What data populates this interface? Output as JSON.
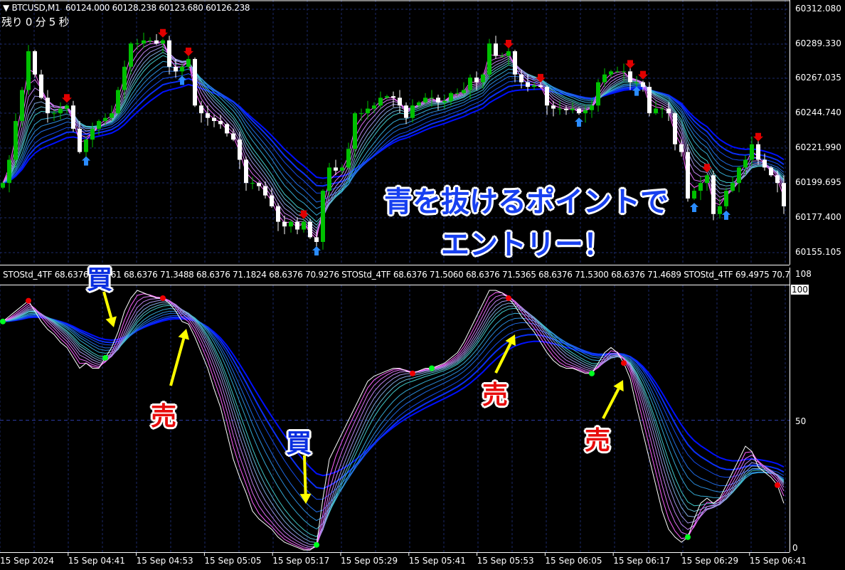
{
  "header": {
    "symbol": "BTCUSD,M1",
    "ohlc": "60124.000 60128.238 60123.680 60126.238",
    "timer": "残り 0 分 5 秒"
  },
  "indicator_header": {
    "text1": "STOStd_4TF 68.6376 ",
    "text2": "61 68.6376 71.3488 68.6376 71.1824 68.6376 70.9276  STOStd_4TF 68.6376 71.5060 68.6376 71.5365 68.6376 71.5300 68.6376 71.4689  STOStd_4TF 69.4975 70.7"
  },
  "price_axis": [
    "60312.080",
    "60289.330",
    "60267.035",
    "60244.740",
    "60221.990",
    "60199.695",
    "60177.400",
    "60155.105"
  ],
  "stoch_axis": {
    "top": "108",
    "l100": "100",
    "l50": "50",
    "l0": "0"
  },
  "time_axis": [
    "15 Sep 2024",
    "15 Sep 04:41",
    "15 Sep 04:53",
    "15 Sep 05:05",
    "15 Sep 05:17",
    "15 Sep 05:29",
    "15 Sep 05:41",
    "15 Sep 05:53",
    "15 Sep 06:05",
    "15 Sep 06:17",
    "15 Sep 06:29",
    "15 Sep 06:41"
  ],
  "annotations": {
    "buy1": "買",
    "sell1": "売",
    "buy2": "買",
    "sell2": "売",
    "sell3": "売",
    "headline_line1": "青を抜けるポイントで",
    "headline_line2": "エントリー！"
  },
  "colors": {
    "bull": "#00c000",
    "bear": "#ffffff",
    "grid": "#1c2a6a",
    "sell_signal": "#e00000",
    "buy_signal": "#2a8cff",
    "ribbon_fast": "#ff60ff",
    "ribbon_mid": "#40c8c8",
    "ribbon_slow": "#0010ff",
    "annotation_arrow": "#ffff00"
  },
  "chart_data": [
    {
      "type": "candlestick",
      "symbol": "BTCUSD",
      "timeframe": "M1",
      "ylim": [
        60155.105,
        60312.08
      ],
      "closes": [
        60200,
        60215,
        60240,
        60260,
        60285,
        60270,
        60255,
        60245,
        60245,
        60248,
        60250,
        60235,
        60220,
        60228,
        60235,
        60240,
        60242,
        60245,
        60260,
        60275,
        60290,
        60290,
        60292,
        60292,
        60290,
        60292,
        60275,
        60272,
        60275,
        60280,
        60250,
        60245,
        60242,
        60240,
        60238,
        60232,
        60228,
        60215,
        60200,
        60200,
        60198,
        60192,
        60185,
        60175,
        60172,
        60175,
        60170,
        60175,
        60165,
        60162,
        60195,
        60210,
        60208,
        60210,
        60222,
        60245,
        60245,
        60248,
        60250,
        60255,
        60256,
        60255,
        60250,
        60242,
        60250,
        60252,
        60255,
        60255,
        60252,
        60253,
        60258,
        60258,
        60260,
        60268,
        60265,
        60270,
        60290,
        60282,
        60282,
        60285,
        60270,
        60265,
        60262,
        60263,
        60262,
        60250,
        60248,
        60248,
        60247,
        60248,
        60245,
        60247,
        60250,
        60265,
        60270,
        60272,
        60272,
        60272,
        60265,
        60265,
        60262,
        60245,
        60248,
        60248,
        60245,
        60225,
        60220,
        60190,
        60195,
        60200,
        60205,
        60180,
        60185,
        60195,
        60200,
        60210,
        60215,
        60225,
        60215,
        60210,
        60205,
        60200,
        60185
      ],
      "sell_arrows": [
        10,
        25,
        29,
        47,
        79,
        84,
        98,
        100,
        110,
        118
      ],
      "buy_arrows": [
        13,
        28,
        49,
        90,
        99,
        108,
        113
      ]
    },
    {
      "type": "line",
      "name": "STOStd_4TF",
      "ylim": [
        0,
        100
      ],
      "levels": [
        0,
        50,
        100
      ],
      "values": [
        88,
        90,
        92,
        94,
        96,
        92,
        88,
        85,
        83,
        80,
        78,
        74,
        70,
        72,
        70,
        70,
        74,
        78,
        84,
        92,
        97,
        100,
        99,
        98,
        97,
        97,
        95,
        92,
        88,
        87,
        82,
        76,
        70,
        62,
        55,
        45,
        35,
        28,
        22,
        15,
        12,
        10,
        8,
        5,
        3,
        2,
        1,
        0,
        0,
        2,
        20,
        35,
        40,
        45,
        50,
        55,
        60,
        65,
        67,
        68,
        69,
        70,
        70,
        69,
        68,
        69,
        70,
        70,
        71,
        72,
        74,
        76,
        80,
        85,
        90,
        95,
        100,
        100,
        99,
        97,
        94,
        90,
        87,
        84,
        80,
        76,
        73,
        71,
        70,
        70,
        69,
        68,
        68,
        72,
        76,
        78,
        76,
        72,
        66,
        55,
        45,
        35,
        25,
        15,
        8,
        5,
        3,
        5,
        12,
        18,
        20,
        18,
        20,
        25,
        30,
        35,
        40,
        38,
        32,
        30,
        28,
        25,
        18
      ],
      "red_dots": [
        4,
        25,
        64,
        79,
        97,
        121
      ],
      "green_dots": [
        0,
        16,
        49,
        67,
        92,
        107
      ]
    }
  ]
}
